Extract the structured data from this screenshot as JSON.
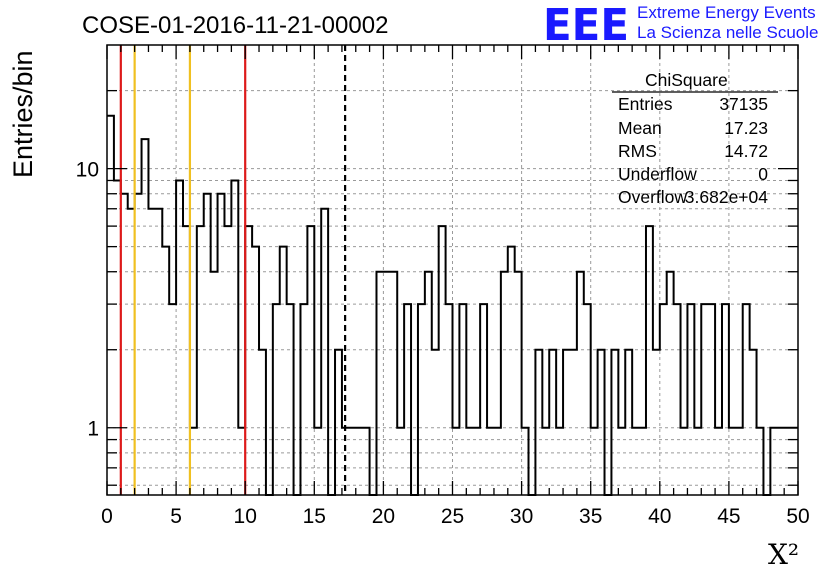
{
  "header": {
    "run_title": "COSE-01-2016-11-21-00002",
    "brand_logo": "EEE",
    "brand_line1": "Extreme Energy Events",
    "brand_line2": "La Scienza nelle Scuole",
    "brand_color": "#1a1aff"
  },
  "stats_box": {
    "title": "ChiSquare",
    "rows": [
      {
        "label": "Entries",
        "value": "37135"
      },
      {
        "label": "Mean",
        "value": "17.23"
      },
      {
        "label": "RMS",
        "value": "14.72"
      },
      {
        "label": "Underflow",
        "value": "0"
      },
      {
        "label": "Overflow",
        "value": "3.682e+04"
      }
    ]
  },
  "chart_data": {
    "type": "histogram",
    "title": "COSE-01-2016-11-21-00002",
    "xlabel": "X²",
    "ylabel": "Entries/bin",
    "xlim": [
      0,
      50
    ],
    "ylim": [
      0.55,
      30
    ],
    "yscale": "log",
    "grid": true,
    "bin_width": 0.5,
    "bin_start": 0,
    "x_ticks": [
      "0",
      "5",
      "10",
      "15",
      "20",
      "25",
      "30",
      "35",
      "40",
      "45",
      "50"
    ],
    "y_ticks": [
      "1",
      "10"
    ],
    "values": [
      16,
      9,
      8,
      7,
      8,
      13,
      7,
      7,
      5,
      3,
      9,
      6,
      1,
      6,
      8,
      4,
      8,
      6,
      9,
      1,
      6,
      5,
      2,
      0,
      3,
      5,
      3,
      0,
      3,
      6,
      1,
      7,
      0,
      2,
      1,
      1,
      1,
      1,
      0,
      4,
      4,
      4,
      1,
      3,
      0,
      3,
      4,
      2,
      6,
      3,
      1,
      3,
      1,
      1,
      3,
      1,
      1,
      4,
      5,
      4,
      1,
      0,
      2,
      1,
      2,
      1,
      2,
      2,
      4,
      3,
      1,
      2,
      0,
      2,
      1,
      2,
      1,
      1,
      6,
      2,
      3,
      4,
      3,
      1,
      3,
      1,
      3,
      3,
      1,
      3,
      1,
      1,
      3,
      2,
      1,
      0,
      1,
      1,
      1,
      1
    ],
    "vertical_lines": [
      {
        "x": 1,
        "color": "#dd1a1a",
        "style": "solid"
      },
      {
        "x": 2,
        "color": "#f0c020",
        "style": "solid"
      },
      {
        "x": 6,
        "color": "#f0c020",
        "style": "solid"
      },
      {
        "x": 10,
        "color": "#dd1a1a",
        "style": "solid"
      },
      {
        "x": 17.23,
        "color": "#000000",
        "style": "dashed"
      }
    ],
    "legend_position": "top-right"
  }
}
